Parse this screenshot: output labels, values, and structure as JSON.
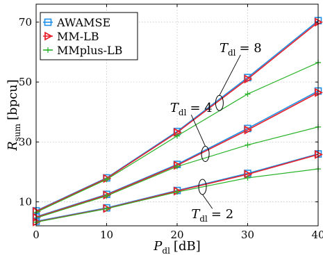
{
  "chart_data": {
    "type": "line",
    "xlabel": {
      "main": "P",
      "sub": "dl",
      "unit": "[dB]"
    },
    "ylabel": {
      "main": "R",
      "sub": "sum",
      "unit": "[bpcu]"
    },
    "x": [
      0,
      10,
      20,
      30,
      40
    ],
    "xlim": [
      0,
      40
    ],
    "ylim": [
      2,
      76
    ],
    "xticks": [
      0,
      10,
      20,
      30,
      40
    ],
    "yticks": [
      10,
      30,
      50,
      70
    ],
    "grid": true,
    "legend": "top-left",
    "series": [
      {
        "name": "AWAMSE",
        "color": "#1f8fe6",
        "marker": "square",
        "group": "T8",
        "values": [
          7.0,
          18.0,
          33.5,
          51.5,
          70.5
        ]
      },
      {
        "name": "MM-LB",
        "color": "#e8202a",
        "marker": "triangle-right",
        "group": "T8",
        "values": [
          6.8,
          17.8,
          33.2,
          51.0,
          70.0
        ]
      },
      {
        "name": "MMplus-LB",
        "color": "#2ab32a",
        "marker": "plus",
        "group": "T8",
        "values": [
          6.5,
          17.5,
          32.0,
          46.0,
          56.5
        ]
      },
      {
        "name": "AWAMSE",
        "color": "#1f8fe6",
        "marker": "square",
        "group": "T4",
        "values": [
          5.0,
          12.5,
          22.5,
          34.5,
          47.0
        ]
      },
      {
        "name": "MM-LB",
        "color": "#e8202a",
        "marker": "triangle-right",
        "group": "T4",
        "values": [
          4.8,
          12.3,
          22.2,
          34.0,
          46.5
        ]
      },
      {
        "name": "MMplus-LB",
        "color": "#2ab32a",
        "marker": "plus",
        "group": "T4",
        "values": [
          4.6,
          12.0,
          21.8,
          29.0,
          35.0
        ]
      },
      {
        "name": "AWAMSE",
        "color": "#1f8fe6",
        "marker": "square",
        "group": "T2",
        "values": [
          3.5,
          8.0,
          13.8,
          19.5,
          26.0
        ]
      },
      {
        "name": "MM-LB",
        "color": "#e8202a",
        "marker": "triangle-right",
        "group": "T2",
        "values": [
          3.3,
          7.8,
          13.6,
          19.2,
          25.8
        ]
      },
      {
        "name": "MMplus-LB",
        "color": "#2ab32a",
        "marker": "plus",
        "group": "T2",
        "values": [
          3.2,
          7.7,
          13.3,
          18.0,
          21.0
        ]
      }
    ],
    "legend_entries": [
      {
        "label": "AWAMSE",
        "color": "#1f8fe6",
        "marker": "square"
      },
      {
        "label": "MM-LB",
        "color": "#e8202a",
        "marker": "triangle-right"
      },
      {
        "label": "MMplus-LB",
        "color": "#2ab32a",
        "marker": "plus"
      }
    ],
    "annotations": [
      {
        "main": "T",
        "sub": "dl",
        "eq": "= 8",
        "ellipse_x": 26,
        "ellipse_y": 43,
        "label_x": 29,
        "label_y": 60
      },
      {
        "main": "T",
        "sub": "dl",
        "eq": "= 4",
        "ellipse_x": 24,
        "ellipse_y": 26,
        "label_x": 22,
        "label_y": 40
      },
      {
        "main": "T",
        "sub": "dl",
        "eq": "= 2",
        "ellipse_x": 23.6,
        "ellipse_y": 15,
        "label_x": 25,
        "label_y": 4.5
      }
    ]
  }
}
